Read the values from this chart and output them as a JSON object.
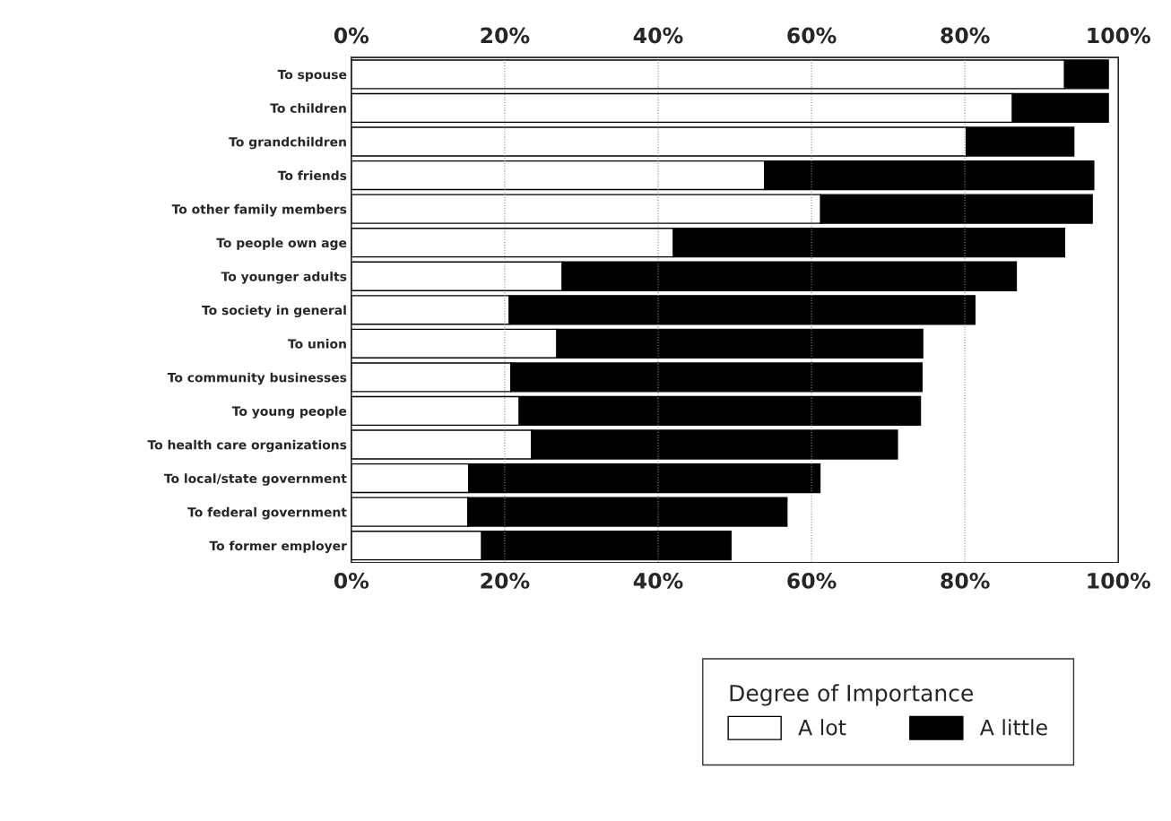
{
  "chart_data": {
    "type": "bar",
    "orientation": "horizontal",
    "stacked": true,
    "categories": [
      "To spouse",
      "To children",
      "To grandchildren",
      "To friends",
      "To other family members",
      "To people own age",
      "To younger adults",
      "To society in general",
      "To union",
      "To community businesses",
      "To young people",
      "To health care organizations",
      "To local/state government",
      "To federal government",
      "To former employer"
    ],
    "series": [
      {
        "name": "A lot",
        "color": "#ffffff",
        "values": [
          93.0,
          86.2,
          80.2,
          53.9,
          61.2,
          42.0,
          27.5,
          20.6,
          26.8,
          20.8,
          21.9,
          23.5,
          15.3,
          15.2,
          17.0
        ]
      },
      {
        "name": "A little",
        "color": "#000000",
        "values": [
          5.7,
          12.5,
          14.0,
          42.9,
          35.4,
          51.0,
          59.2,
          60.7,
          47.7,
          53.6,
          52.3,
          47.7,
          45.8,
          41.6,
          32.5
        ]
      }
    ],
    "legend_title": "Degree of Importance",
    "legend": "bottom",
    "grid": "x",
    "xlim": [
      0,
      100
    ],
    "xticks": [
      {
        "value": 0,
        "label": "0%"
      },
      {
        "value": 20,
        "label": "20%"
      },
      {
        "value": 40,
        "label": "40%"
      },
      {
        "value": 60,
        "label": "60%"
      },
      {
        "value": 80,
        "label": "80%"
      },
      {
        "value": 100,
        "label": "100%"
      }
    ],
    "x2lim": [
      0,
      100
    ],
    "x2ticks": [
      {
        "value": 0,
        "label": "0%"
      },
      {
        "value": 20,
        "label": "20%"
      },
      {
        "value": 40,
        "label": "40%"
      },
      {
        "value": 60,
        "label": "60%"
      },
      {
        "value": 80,
        "label": "80%"
      },
      {
        "value": 100,
        "label": "100%"
      }
    ]
  }
}
